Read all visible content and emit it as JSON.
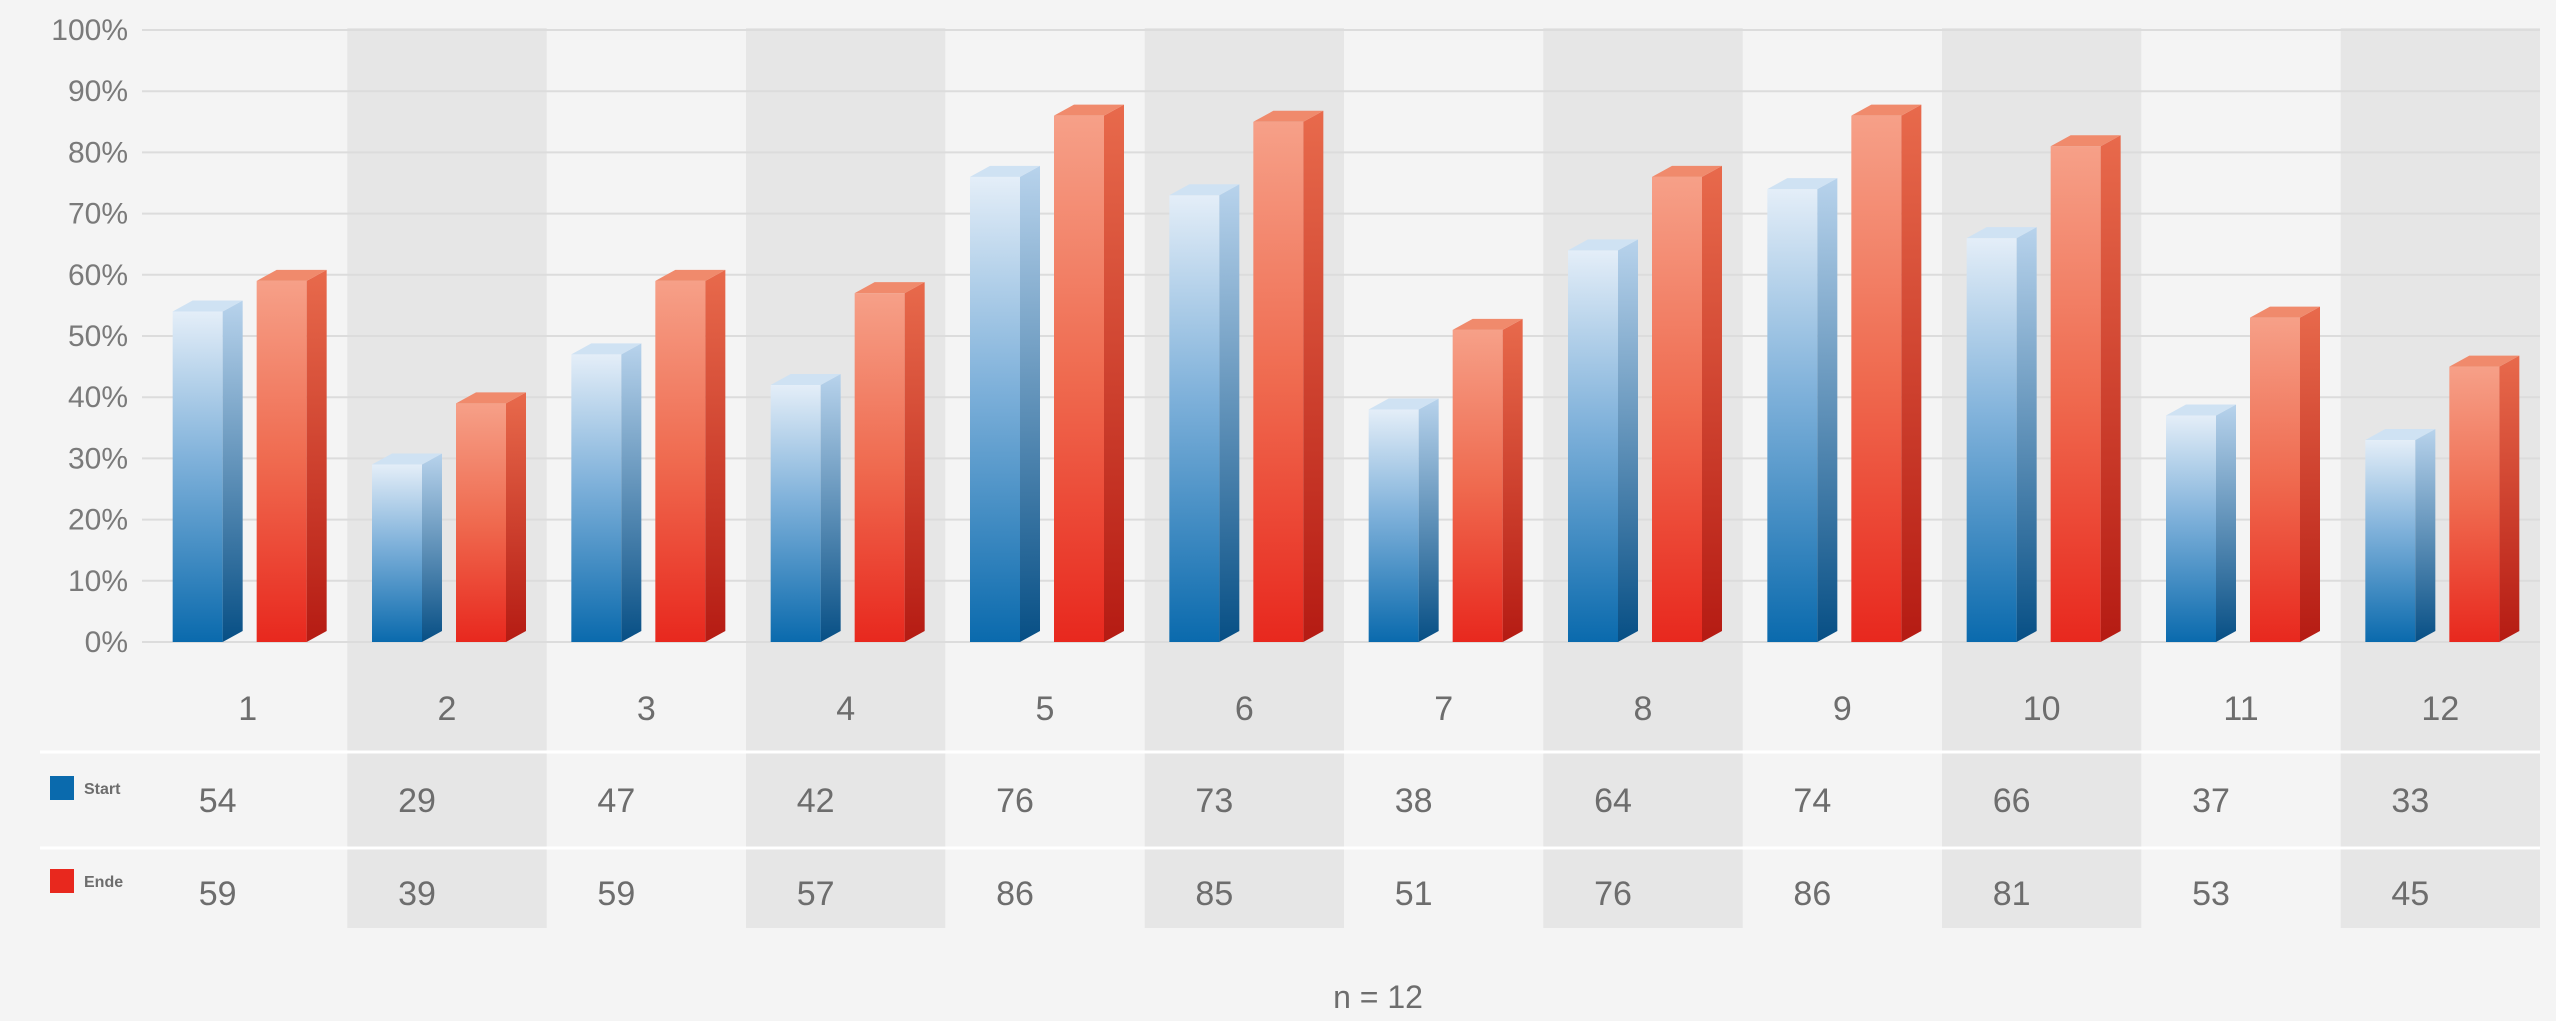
{
  "chart_data": {
    "type": "bar",
    "bar_style": "3d",
    "categories": [
      "1",
      "2",
      "3",
      "4",
      "5",
      "6",
      "7",
      "8",
      "9",
      "10",
      "11",
      "12"
    ],
    "series": [
      {
        "name": "Start",
        "color": "#0a6aad",
        "values": [
          54,
          29,
          47,
          42,
          76,
          73,
          38,
          64,
          74,
          66,
          37,
          33
        ]
      },
      {
        "name": "Ende",
        "color": "#e8281e",
        "values": [
          59,
          39,
          59,
          57,
          86,
          85,
          51,
          76,
          86,
          81,
          53,
          45
        ]
      }
    ],
    "y_ticks": [
      "0%",
      "10%",
      "20%",
      "30%",
      "40%",
      "50%",
      "60%",
      "70%",
      "80%",
      "90%",
      "100%"
    ],
    "ylim": [
      0,
      100
    ],
    "grid": true,
    "legend": "table-left",
    "data_table": true,
    "note": "n = 12"
  }
}
